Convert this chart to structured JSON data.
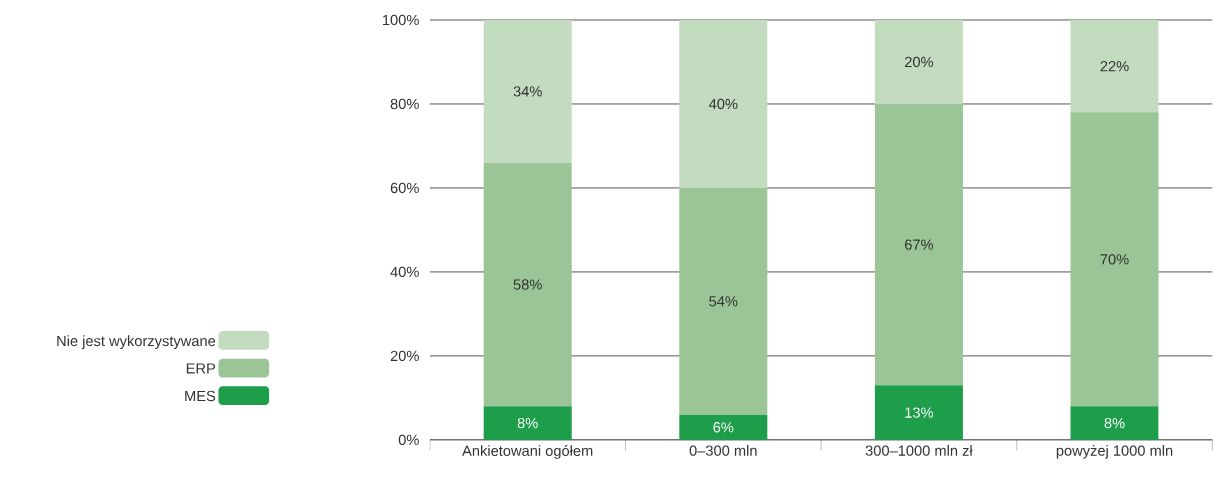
{
  "chart_data": {
    "type": "bar",
    "stacked": true,
    "categories": [
      "Ankietowani ogółem",
      "0–300 mln",
      "300–1000 mln zł",
      "powyżej 1000 mln"
    ],
    "series": [
      {
        "name": "MES",
        "color": "#1e9e4a",
        "values": [
          8,
          6,
          13,
          8
        ],
        "value_labels": [
          "8%",
          "6%",
          "13%",
          "8%"
        ]
      },
      {
        "name": "ERP",
        "color": "#9bc596",
        "values": [
          58,
          54,
          67,
          70
        ],
        "value_labels": [
          "58%",
          "54%",
          "67%",
          "70%"
        ]
      },
      {
        "name": "Nie jest wykorzystywane",
        "color": "#c3dcbf",
        "values": [
          34,
          40,
          20,
          22
        ],
        "value_labels": [
          "34%",
          "40%",
          "20%",
          "22%"
        ]
      }
    ],
    "ylim": [
      0,
      100
    ],
    "yticks": [
      {
        "value": 0,
        "label": "0%"
      },
      {
        "value": 20,
        "label": "20%"
      },
      {
        "value": 40,
        "label": "40%"
      },
      {
        "value": 60,
        "label": "60%"
      },
      {
        "value": 80,
        "label": "80%"
      },
      {
        "value": 100,
        "label": "100%"
      }
    ],
    "grid": "y",
    "legend": "left"
  }
}
